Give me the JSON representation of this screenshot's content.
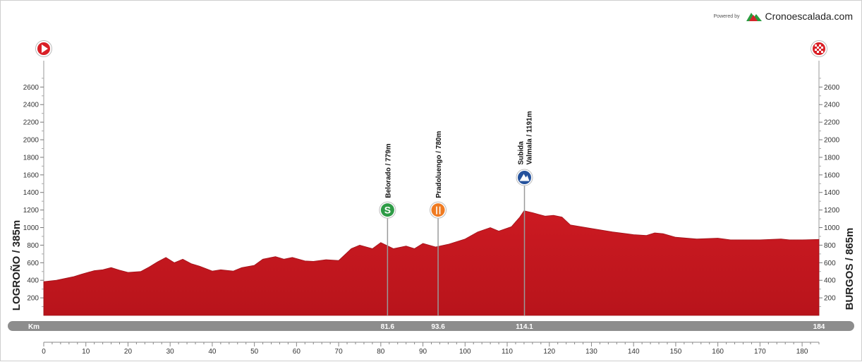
{
  "brand": {
    "powered": "Powered by",
    "name": "Cronoescalada.com"
  },
  "chart_data": {
    "type": "area",
    "xlabel": "Km",
    "xlim": [
      0,
      184
    ],
    "ylim": [
      0,
      2900
    ],
    "x_ticks": [
      0,
      10,
      20,
      30,
      40,
      50,
      60,
      70,
      80,
      90,
      100,
      110,
      120,
      130,
      140,
      150,
      160,
      170,
      180
    ],
    "y_ticks": [
      200,
      400,
      600,
      800,
      1000,
      1200,
      1400,
      1600,
      1800,
      2000,
      2200,
      2400,
      2600
    ],
    "start_label": "LOGROÑO / 385m",
    "end_label": "BURGOS / 865m",
    "area_color": "#cc1a22",
    "series": [
      {
        "x": [
          0,
          3,
          7,
          9,
          12,
          14,
          16,
          18,
          20,
          23,
          25,
          27,
          29,
          31,
          33,
          35,
          37,
          40,
          42,
          45,
          47,
          50,
          52,
          55,
          57,
          59,
          62,
          64,
          67,
          70,
          73,
          75,
          78,
          80,
          83,
          86,
          88,
          90,
          93,
          96,
          100,
          103,
          106,
          108,
          111,
          113,
          114,
          116,
          119,
          121,
          123,
          125,
          130,
          135,
          140,
          143,
          145,
          147,
          150,
          155,
          160,
          163,
          166,
          170,
          175,
          177,
          180,
          184
        ],
        "y": [
          385,
          400,
          440,
          470,
          510,
          520,
          545,
          515,
          490,
          500,
          550,
          610,
          660,
          600,
          640,
          590,
          560,
          505,
          520,
          505,
          545,
          570,
          640,
          670,
          640,
          660,
          620,
          615,
          635,
          625,
          760,
          800,
          760,
          830,
          760,
          790,
          760,
          820,
          779,
          810,
          870,
          950,
          1000,
          960,
          1010,
          1120,
          1191,
          1170,
          1130,
          1140,
          1120,
          1030,
          990,
          950,
          920,
          910,
          940,
          930,
          890,
          870,
          880,
          860,
          860,
          860,
          870,
          860,
          860,
          865
        ]
      }
    ],
    "climbs": [
      {
        "km": 81.6,
        "km_label": "81.6",
        "label": "Belorado / 779m",
        "icon": "sprint-icon",
        "color": "#2e9b46",
        "glyph": "S",
        "bubble_alt": 1200
      },
      {
        "km": 93.6,
        "km_label": "93.6",
        "label": "Pradoluengo / 780m",
        "icon": "feed-zone-icon",
        "color": "#ef7b22",
        "glyph": "🍴",
        "bubble_alt": 1200
      },
      {
        "km": 114.1,
        "km_label": "114.1",
        "label_lines": [
          "Subida",
          "Valmala / 1191m"
        ],
        "icon": "climb-category-icon",
        "color": "#25529c",
        "glyph": "3",
        "bubble_alt": 1570
      }
    ],
    "end_km_label": "184"
  }
}
